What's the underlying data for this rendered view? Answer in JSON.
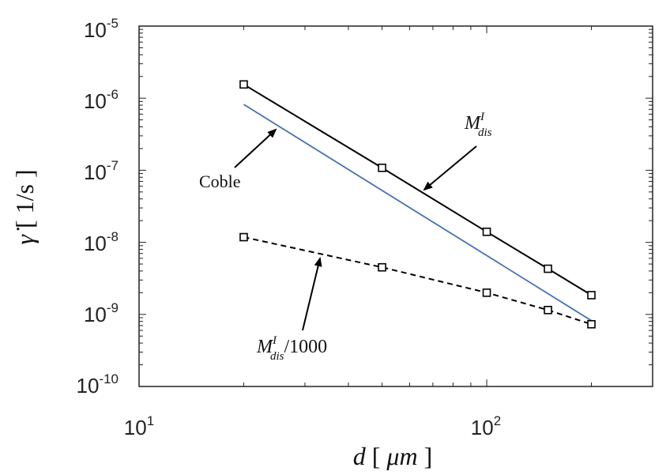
{
  "chart_data": {
    "type": "line",
    "xscale": "log",
    "yscale": "log",
    "xlim": [
      10,
      300
    ],
    "ylim": [
      1e-10,
      1e-05
    ],
    "xlabel": {
      "main": "d",
      "unit": "μm"
    },
    "ylabel": {
      "main": "γ̇",
      "unit": "1/s"
    },
    "xticks": [
      {
        "value": 10,
        "base": "10",
        "exp": "1"
      },
      {
        "value": 100,
        "base": "10",
        "exp": "2"
      }
    ],
    "yticks": [
      {
        "value": 1e-10,
        "base": "10",
        "exp": "-10"
      },
      {
        "value": 1e-09,
        "base": "10",
        "exp": "-9"
      },
      {
        "value": 1e-08,
        "base": "10",
        "exp": "-8"
      },
      {
        "value": 1e-07,
        "base": "10",
        "exp": "-7"
      },
      {
        "value": 1e-06,
        "base": "10",
        "exp": "-6"
      },
      {
        "value": 1e-05,
        "base": "10",
        "exp": "-5"
      }
    ],
    "grid": false,
    "series": [
      {
        "id": "mdis",
        "style": "solid",
        "color": "#000000",
        "markers": true,
        "x": [
          20,
          50,
          100,
          150,
          200
        ],
        "y": [
          1.55e-06,
          1.08e-07,
          1.4e-08,
          4.3e-09,
          1.85e-09
        ]
      },
      {
        "id": "coble",
        "style": "solid",
        "color": "#4472b0",
        "markers": false,
        "x": [
          20,
          200
        ],
        "y": [
          8.2e-07,
          8.2e-10
        ]
      },
      {
        "id": "mdis1000",
        "style": "dashed",
        "color": "#000000",
        "markers": true,
        "x": [
          20,
          50,
          100,
          150,
          200
        ],
        "y": [
          1.18e-08,
          4.5e-09,
          2e-09,
          1.15e-09,
          7.3e-10
        ]
      }
    ],
    "annotations": [
      {
        "id": "coble",
        "text": "Coble"
      },
      {
        "id": "mdis",
        "main": "M",
        "sup": "I",
        "sub": "dis"
      },
      {
        "id": "mdis1000",
        "main": "M",
        "sup": "I",
        "sub": "dis",
        "suffix": "/1000"
      }
    ]
  }
}
